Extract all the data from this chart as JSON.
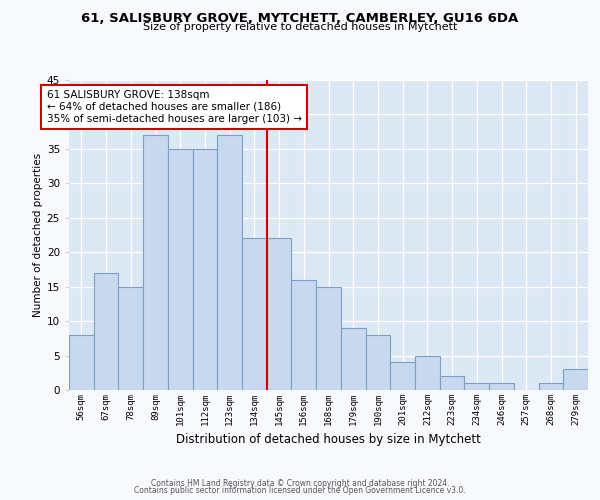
{
  "title1": "61, SALISBURY GROVE, MYTCHETT, CAMBERLEY, GU16 6DA",
  "title2": "Size of property relative to detached houses in Mytchett",
  "xlabel": "Distribution of detached houses by size in Mytchett",
  "ylabel": "Number of detached properties",
  "categories": [
    "56sqm",
    "67sqm",
    "78sqm",
    "89sqm",
    "101sqm",
    "112sqm",
    "123sqm",
    "134sqm",
    "145sqm",
    "156sqm",
    "168sqm",
    "179sqm",
    "190sqm",
    "201sqm",
    "212sqm",
    "223sqm",
    "234sqm",
    "246sqm",
    "257sqm",
    "268sqm",
    "279sqm"
  ],
  "values": [
    8,
    17,
    15,
    37,
    35,
    35,
    37,
    22,
    22,
    16,
    15,
    9,
    8,
    4,
    5,
    2,
    1,
    1,
    0,
    1,
    3
  ],
  "bar_color": "#c8d8ee",
  "bar_edge_color": "#7aa0c8",
  "vline_color": "#cc0000",
  "annotation_line1": "61 SALISBURY GROVE: 138sqm",
  "annotation_line2": "← 64% of detached houses are smaller (186)",
  "annotation_line3": "35% of semi-detached houses are larger (103) →",
  "annotation_box_edge_color": "#cc0000",
  "annotation_box_fill": "#ffffff",
  "ylim": [
    0,
    45
  ],
  "yticks": [
    0,
    5,
    10,
    15,
    20,
    25,
    30,
    35,
    40,
    45
  ],
  "fig_bg_color": "#f7f9fc",
  "plot_bg_color": "#dde8f5",
  "grid_color": "#ffffff",
  "footer1": "Contains HM Land Registry data © Crown copyright and database right 2024.",
  "footer2": "Contains public sector information licensed under the Open Government Licence v3.0."
}
